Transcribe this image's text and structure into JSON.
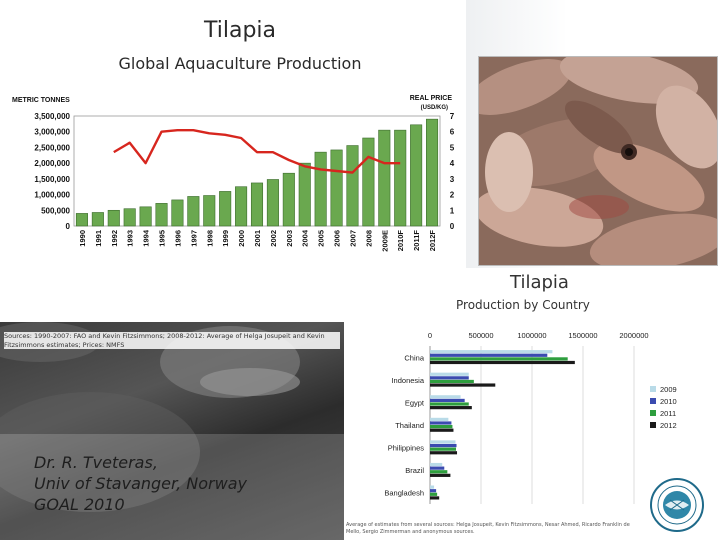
{
  "slide": {
    "title": "Tilapia",
    "subtitle": "Global Aquaculture Production",
    "author_lines": [
      "Dr. R. Tveteras,",
      "Univ of Stavanger, Norway",
      "GOAL 2010"
    ],
    "source_left": "Sources: 1990-2007: FAO and Kevin Fitzsimmons; 2008-2012: Average of Helga Josupeit and Kevin Fitzsimmons estimates; Prices: NMFS",
    "source_right": "Average of estimates from several sources: Helga Josupeit, Kevin Fitzsimmons, Nesar Ahmed, Ricardo Franklin de Mello, Sergio Zimmerman and anonymous sources."
  },
  "chart_data": [
    {
      "type": "bar",
      "title": "",
      "ylabel": "METRIC TONNES",
      "y2label": "REAL PRICE (USD/KG)",
      "ylim": [
        0,
        3500000
      ],
      "y2lim": [
        0,
        7
      ],
      "yticks": [
        "3,500,000",
        "3,000,000",
        "2,500,000",
        "2,000,000",
        "1,500,000",
        "1,000,000",
        "500,000",
        "0"
      ],
      "y2ticks": [
        "7",
        "6",
        "5",
        "4",
        "3",
        "2",
        "1",
        "0"
      ],
      "categories": [
        "1990",
        "1991",
        "1992",
        "1993",
        "1994",
        "1995",
        "1996",
        "1997",
        "1998",
        "1999",
        "2000",
        "2001",
        "2002",
        "2003",
        "2004",
        "2005",
        "2006",
        "2007",
        "2008",
        "2009E",
        "2010F",
        "2011F",
        "2012F"
      ],
      "series": [
        {
          "type": "bar",
          "axis": "left",
          "color": "#6aa84f",
          "values": [
            400000,
            430000,
            500000,
            550000,
            610000,
            720000,
            830000,
            940000,
            970000,
            1100000,
            1250000,
            1370000,
            1480000,
            1680000,
            2000000,
            2350000,
            2420000,
            2560000,
            2800000,
            3050000,
            3050000,
            3220000,
            3400000
          ]
        },
        {
          "type": "line",
          "axis": "right",
          "color": "#d7261e",
          "values": [
            null,
            null,
            4.7,
            5.3,
            4.0,
            6.0,
            6.1,
            6.1,
            5.9,
            5.8,
            5.6,
            4.7,
            4.7,
            4.2,
            3.8,
            3.6,
            3.5,
            3.4,
            4.4,
            4.0,
            4.0,
            null,
            null
          ]
        }
      ]
    },
    {
      "type": "bar",
      "title": "Tilapia",
      "subtitle": "Production by Country",
      "orientation": "horizontal",
      "xlim": [
        0,
        2000000
      ],
      "xticks": [
        "0",
        "500000",
        "1000000",
        "1500000",
        "2000000"
      ],
      "categories": [
        "China",
        "Indonesia",
        "Egypt",
        "Thailand",
        "Philippines",
        "Brazil",
        "Bangladesh"
      ],
      "series": [
        {
          "name": "2009",
          "color": "#b9dbe8",
          "values": [
            1200000,
            380000,
            300000,
            180000,
            250000,
            120000,
            40000
          ]
        },
        {
          "name": "2010",
          "color": "#3b4bb0",
          "values": [
            1150000,
            380000,
            340000,
            210000,
            260000,
            140000,
            60000
          ]
        },
        {
          "name": "2011",
          "color": "#2e9e3e",
          "values": [
            1350000,
            430000,
            380000,
            220000,
            255000,
            170000,
            70000
          ]
        },
        {
          "name": "2012",
          "color": "#1a1a1a",
          "values": [
            1420000,
            640000,
            410000,
            230000,
            265000,
            200000,
            90000
          ]
        }
      ]
    }
  ]
}
